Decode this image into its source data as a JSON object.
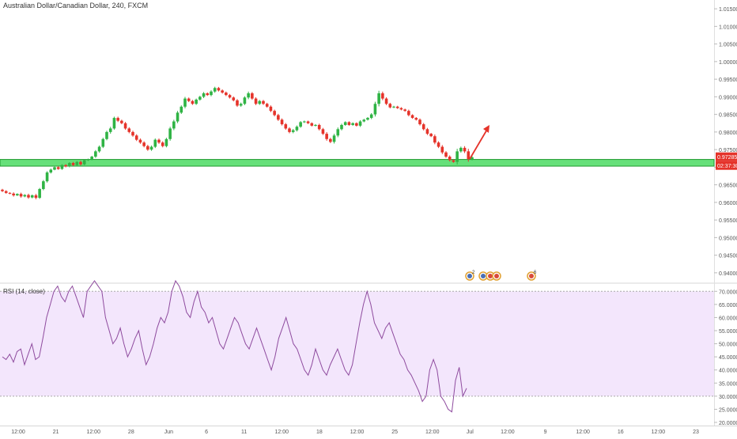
{
  "header": {
    "title": "Australian Dollar/Canadian Dollar, 240, FXCM"
  },
  "colors": {
    "up": "#26a69a",
    "up_fill": "#2fb344",
    "down": "#e5332a",
    "zone": "#66e07a",
    "zone_border": "#1f9a2e",
    "rsi_line": "#8e4b9e",
    "rsi_band": "#f3e6fc",
    "price_tag": "#e5332a",
    "arrow": "#e5332a"
  },
  "price_panel": {
    "y_ticks": [
      "1.01500",
      "1.01000",
      "1.00500",
      "1.00000",
      "0.99500",
      "0.99000",
      "0.98500",
      "0.98000",
      "0.97500",
      "0.97000",
      "0.96500",
      "0.96000",
      "0.95500",
      "0.95000",
      "0.94500",
      "0.94000"
    ],
    "last_price": "0.97285",
    "countdown": "02:37:30",
    "events": [
      "2",
      "6"
    ],
    "icon_names": [
      "au-flag-icon",
      "au-flag-icon",
      "ca-flag-icon",
      "ca-flag-icon"
    ]
  },
  "rsi_panel": {
    "label": "RSI (14, close)",
    "y_ticks": [
      "70.0000",
      "65.0000",
      "60.0000",
      "55.0000",
      "50.0000",
      "45.0000",
      "40.0000",
      "35.0000",
      "30.0000",
      "25.0000",
      "20.0000"
    ],
    "overbought": 70,
    "oversold": 30
  },
  "x_axis": {
    "ticks": [
      "12:00",
      "21",
      "12:00",
      "28",
      "Jun",
      "6",
      "11",
      "12:00",
      "18",
      "12:00",
      "25",
      "12:00",
      "Jul",
      "12:00",
      "9",
      "12:00",
      "16",
      "12:00",
      "23"
    ]
  },
  "chart_data": {
    "type": "candlestick",
    "title": "Australian Dollar/Canadian Dollar, 240, FXCM",
    "ylim": [
      0.9375,
      1.0175
    ],
    "support_zone": [
      0.9703,
      0.9722
    ],
    "close": [
      0.9632,
      0.9627,
      0.9625,
      0.962,
      0.9624,
      0.9617,
      0.9621,
      0.9614,
      0.962,
      0.9613,
      0.9638,
      0.966,
      0.9685,
      0.9693,
      0.97,
      0.9695,
      0.9706,
      0.9702,
      0.9712,
      0.9706,
      0.9715,
      0.9708,
      0.972,
      0.9722,
      0.973,
      0.9745,
      0.9758,
      0.978,
      0.98,
      0.981,
      0.984,
      0.9832,
      0.9825,
      0.981,
      0.98,
      0.979,
      0.9778,
      0.977,
      0.976,
      0.975,
      0.9758,
      0.9778,
      0.977,
      0.976,
      0.978,
      0.981,
      0.983,
      0.9855,
      0.9872,
      0.9895,
      0.9888,
      0.988,
      0.9892,
      0.99,
      0.991,
      0.9905,
      0.9915,
      0.9925,
      0.9918,
      0.9912,
      0.9905,
      0.9898,
      0.989,
      0.9875,
      0.988,
      0.9898,
      0.991,
      0.9895,
      0.988,
      0.9888,
      0.988,
      0.9872,
      0.986,
      0.9848,
      0.9835,
      0.9822,
      0.981,
      0.98,
      0.9805,
      0.9815,
      0.9828,
      0.983,
      0.9825,
      0.9818,
      0.982,
      0.9808,
      0.9795,
      0.978,
      0.9772,
      0.979,
      0.9808,
      0.982,
      0.9828,
      0.982,
      0.9825,
      0.9818,
      0.983,
      0.9835,
      0.984,
      0.985,
      0.988,
      0.991,
      0.9895,
      0.988,
      0.987,
      0.9872,
      0.9868,
      0.9864,
      0.986,
      0.9848,
      0.984,
      0.9835,
      0.9822,
      0.9808,
      0.9795,
      0.9788,
      0.977,
      0.9758,
      0.9742,
      0.973,
      0.972,
      0.9715,
      0.9745,
      0.9755,
      0.9745,
      0.9723,
      0.9728
    ],
    "open_offset": [
      0.0004,
      0.0004,
      0.0003,
      0.0006,
      0.0003,
      0.0006,
      0.0004,
      0.0006,
      0.0004,
      0.0007,
      0.0005,
      0.0006,
      0.0006,
      0.0005,
      0.0003,
      0.0004,
      0.0004,
      0.0004,
      0.0004,
      0.0005,
      0.0004,
      0.0006,
      0.0004,
      0.0004,
      0.0004,
      0.0006,
      0.0006,
      0.0006,
      0.0006,
      0.0008,
      0.0006,
      0.0006,
      0.0005,
      0.0006,
      0.0006,
      0.0006,
      0.0006,
      0.0006,
      0.0006,
      0.0006,
      0.0006,
      0.0006,
      0.0006,
      0.0006,
      0.0006,
      0.0008,
      0.0008,
      0.0008,
      0.0006,
      0.0008,
      0.0005,
      0.0005,
      0.0005,
      0.0005,
      0.0006,
      0.0004,
      0.0006,
      0.0006,
      0.0005,
      0.0005,
      0.0005,
      0.0005,
      0.0005,
      0.0006,
      0.0006,
      0.0006,
      0.0008,
      0.0006,
      0.0006,
      0.0005,
      0.0005,
      0.0005,
      0.0006,
      0.0006,
      0.0006,
      0.0006,
      0.0006,
      0.0006,
      0.0006,
      0.0006,
      0.0005,
      0.0004,
      0.0004,
      0.0004,
      0.0004,
      0.0006,
      0.0006,
      0.0008,
      0.0006,
      0.0008,
      0.0008,
      0.0006,
      0.0004,
      0.0004,
      0.0004,
      0.0004,
      0.0006,
      0.0004,
      0.0004,
      0.0006,
      0.001,
      0.0012,
      0.0008,
      0.0006,
      0.0005,
      0.0004,
      0.0004,
      0.0004,
      0.0004,
      0.0006,
      0.0004,
      0.0004,
      0.0006,
      0.0006,
      0.0006,
      0.0004,
      0.0008,
      0.0006,
      0.0008,
      0.0006,
      0.0006,
      0.0004,
      0.0012,
      0.0006,
      0.0008,
      0.0012,
      0.0006
    ],
    "rsi": [
      45,
      44,
      46,
      43,
      47,
      48,
      42,
      46,
      50,
      44,
      45,
      52,
      60,
      65,
      70,
      72,
      68,
      66,
      70,
      72,
      68,
      64,
      60,
      70,
      72,
      74,
      72,
      70,
      60,
      55,
      50,
      52,
      56,
      50,
      45,
      48,
      52,
      55,
      48,
      42,
      45,
      50,
      56,
      60,
      58,
      62,
      70,
      74,
      72,
      68,
      62,
      60,
      66,
      70,
      64,
      62,
      58,
      60,
      55,
      50,
      48,
      52,
      56,
      60,
      58,
      54,
      50,
      48,
      52,
      56,
      52,
      48,
      44,
      40,
      45,
      52,
      56,
      60,
      55,
      50,
      48,
      44,
      40,
      38,
      42,
      48,
      44,
      40,
      38,
      42,
      45,
      48,
      44,
      40,
      38,
      42,
      50,
      58,
      65,
      70,
      65,
      58,
      55,
      52,
      56,
      58,
      54,
      50,
      46,
      44,
      40,
      38,
      35,
      32,
      28,
      30,
      40,
      44,
      40,
      30,
      28,
      25,
      24,
      36,
      41,
      30,
      33
    ]
  }
}
